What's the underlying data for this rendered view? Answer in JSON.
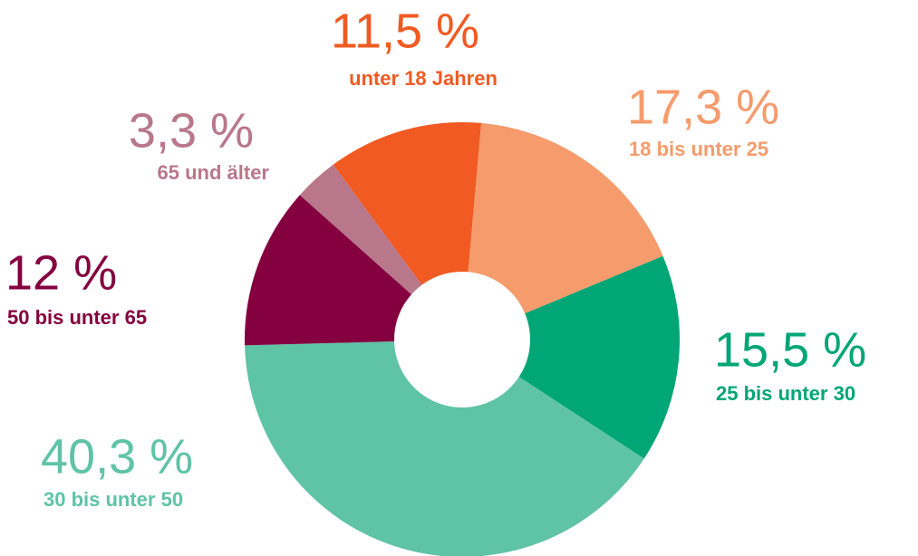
{
  "chart_data": {
    "type": "pie",
    "categories": [
      "unter 18 Jahren",
      "18 bis unter 25",
      "25 bis unter 30",
      "30 bis unter 50",
      "50 bis unter 65",
      "65 und älter"
    ],
    "values": [
      11.5,
      17.3,
      15.5,
      40.3,
      12,
      3.3
    ],
    "value_labels": [
      "11,5 %",
      "17,3 %",
      "15,5 %",
      "40,3 %",
      "12 %",
      "3,3 %"
    ],
    "colors": [
      "#f15a22",
      "#f59b6c",
      "#00a675",
      "#5fc3a5",
      "#84003f",
      "#b8778b"
    ]
  }
}
